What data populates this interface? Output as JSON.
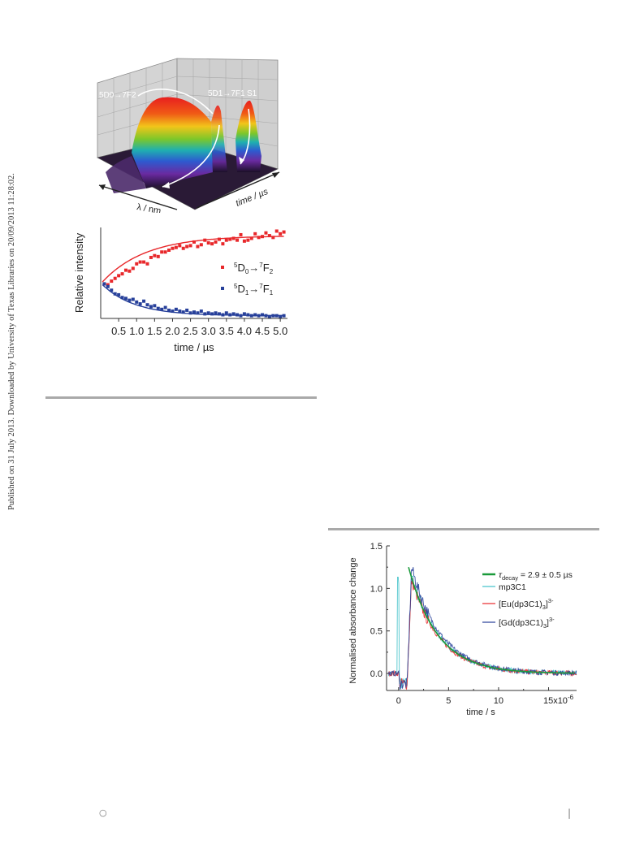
{
  "side_note": "Published on 31 July 2013. Downloaded by University of Texas Libraries on 20/09/2013 11:28:02.",
  "figure_3d": {
    "axis_wavelength": "λ / nm",
    "axis_time": "time / µs",
    "label_a": "5D0→7F2",
    "label_b": "5D1→7F1",
    "label_c": "S1"
  },
  "footer": {
    "left_glyph": "○",
    "right_glyph": "|"
  },
  "colors": {
    "red_series": "#e8282b",
    "blue_series": "#27409a",
    "green_fit": "#1a9a3a",
    "cyan_series": "#3fc1c9",
    "rule_gray": "#a9a9a9"
  },
  "chart_data": [
    {
      "type": "scatter",
      "xlabel": "time / µs",
      "ylabel": "Relative intensity",
      "xlim": [
        0,
        5.2
      ],
      "ylim": [
        0,
        1
      ],
      "xticks": [
        "0.5",
        "1.0",
        "1.5",
        "2.0",
        "2.5",
        "3.0",
        "3.5",
        "4.0",
        "4.5",
        "5.0"
      ],
      "legend": [
        {
          "label": "5D0→7F2",
          "sup1": "5",
          "base1": "D",
          "sub1": "0",
          "sup2": "7",
          "base2": "F",
          "sub2": "2",
          "color": "#e8282b"
        },
        {
          "label": "5D1→7F1",
          "sup1": "5",
          "base1": "D",
          "sub1": "1",
          "sup2": "7",
          "base2": "F",
          "sub2": "1",
          "color": "#27409a"
        }
      ],
      "legend_position": "right",
      "series": [
        {
          "name": "5D0→7F2",
          "color": "#e8282b",
          "x": [
            0.1,
            0.2,
            0.3,
            0.4,
            0.5,
            0.6,
            0.7,
            0.8,
            0.9,
            1.0,
            1.1,
            1.2,
            1.3,
            1.4,
            1.5,
            1.6,
            1.7,
            1.8,
            1.9,
            2.0,
            2.1,
            2.2,
            2.3,
            2.4,
            2.5,
            2.6,
            2.7,
            2.8,
            2.9,
            3.0,
            3.1,
            3.2,
            3.3,
            3.4,
            3.5,
            3.6,
            3.7,
            3.8,
            3.9,
            4.0,
            4.1,
            4.2,
            4.3,
            4.4,
            4.5,
            4.6,
            4.7,
            4.8,
            4.9,
            5.0,
            5.1
          ],
          "y": [
            0.38,
            0.37,
            0.41,
            0.44,
            0.47,
            0.49,
            0.53,
            0.52,
            0.55,
            0.6,
            0.62,
            0.62,
            0.6,
            0.67,
            0.69,
            0.68,
            0.73,
            0.73,
            0.75,
            0.77,
            0.78,
            0.8,
            0.77,
            0.79,
            0.8,
            0.84,
            0.79,
            0.81,
            0.86,
            0.83,
            0.82,
            0.84,
            0.87,
            0.82,
            0.86,
            0.87,
            0.88,
            0.86,
            0.92,
            0.85,
            0.86,
            0.88,
            0.93,
            0.89,
            0.9,
            0.94,
            0.91,
            0.89,
            0.96,
            0.93,
            0.95
          ]
        },
        {
          "name": "5D1→7F1",
          "color": "#27409a",
          "x": [
            0.1,
            0.2,
            0.3,
            0.4,
            0.5,
            0.6,
            0.7,
            0.8,
            0.9,
            1.0,
            1.1,
            1.2,
            1.3,
            1.4,
            1.5,
            1.6,
            1.7,
            1.8,
            1.9,
            2.0,
            2.1,
            2.2,
            2.3,
            2.4,
            2.5,
            2.6,
            2.7,
            2.8,
            2.9,
            3.0,
            3.1,
            3.2,
            3.3,
            3.4,
            3.5,
            3.6,
            3.7,
            3.8,
            3.9,
            4.0,
            4.1,
            4.2,
            4.3,
            4.4,
            4.5,
            4.6,
            4.7,
            4.8,
            4.9,
            5.0,
            5.1
          ],
          "y": [
            0.38,
            0.35,
            0.31,
            0.27,
            0.26,
            0.23,
            0.22,
            0.2,
            0.21,
            0.18,
            0.16,
            0.19,
            0.15,
            0.13,
            0.14,
            0.11,
            0.1,
            0.12,
            0.09,
            0.08,
            0.1,
            0.08,
            0.07,
            0.09,
            0.06,
            0.07,
            0.06,
            0.08,
            0.05,
            0.06,
            0.05,
            0.06,
            0.05,
            0.04,
            0.06,
            0.04,
            0.05,
            0.04,
            0.03,
            0.05,
            0.04,
            0.03,
            0.04,
            0.03,
            0.04,
            0.03,
            0.02,
            0.03,
            0.03,
            0.02,
            0.03
          ]
        }
      ],
      "fits": [
        {
          "name": "rise",
          "color": "#e8282b",
          "y0": 0.38,
          "yinf": 0.91,
          "tau": 1.2
        },
        {
          "name": "decay",
          "color": "#27409a",
          "y0": 0.39,
          "yinf": 0.03,
          "tau": 0.9
        }
      ]
    },
    {
      "type": "line",
      "xlabel": "time / s",
      "ylabel": "Normalised absorbance change",
      "xlim": [
        -1.2,
        17.8
      ],
      "ylim": [
        -0.2,
        1.5
      ],
      "xticks": [
        "0",
        "5",
        "10",
        "15x10-6"
      ],
      "yticks": [
        "0.0",
        "0.5",
        "1.0",
        "1.5"
      ],
      "legend_position": "right",
      "legend": [
        {
          "label": "τdecay = 2.9 ± 0.5 µs",
          "sym": "τ",
          "sub": "decay",
          "rest": " = 2.9 ± 0.5 µs",
          "color": "#1a9a3a"
        },
        {
          "label": "mp3C1",
          "text": "mp3C1",
          "color": "#3fc1c9"
        },
        {
          "label": "[Eu(dp3C1)3]3-",
          "pre": "[Eu(dp3C1)",
          "sub": "3",
          "close": "]",
          "sup": "3-",
          "color": "#e8282b"
        },
        {
          "label": "[Gd(dp3C1)3]3-",
          "pre": "[Gd(dp3C1)",
          "sub": "3",
          "close": "]",
          "sup": "3-",
          "color": "#27409a"
        }
      ],
      "series": [
        {
          "name": "mp3C1",
          "color": "#3fc1c9",
          "peak": 1.15,
          "tau": 2.9
        },
        {
          "name": "[Eu(dp3C1)3]3-",
          "color": "#e8282b",
          "peak": 1.1,
          "tau": 2.9
        },
        {
          "name": "[Gd(dp3C1)3]3-",
          "color": "#27409a",
          "peak": 1.25,
          "tau": 2.9
        }
      ],
      "fit": {
        "name": "fit",
        "color": "#1a9a3a",
        "amplitude": 1.25,
        "tau": 2.9,
        "t0": 1.0
      }
    }
  ]
}
